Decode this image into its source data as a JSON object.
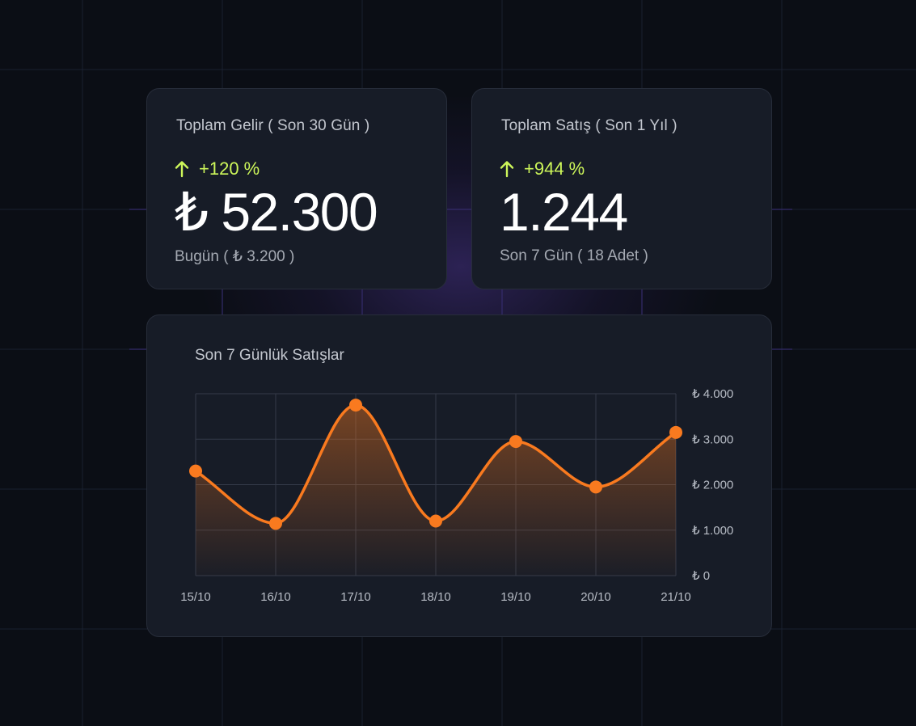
{
  "kpis": {
    "revenue": {
      "title": "Toplam Gelir ( Son 30 Gün )",
      "change": "+120 %",
      "value": "₺ 52.300",
      "sub": "Bugün ( ₺ 3.200 )"
    },
    "sales": {
      "title": "Toplam Satış ( Son 1 Yıl )",
      "change": "+944 %",
      "value": "1.244",
      "sub": "Son 7 Gün ( 18 Adet )"
    }
  },
  "colors": {
    "accent_up": "#cdf65a",
    "line": "#f97a1f",
    "card_bg": "#171c27",
    "page_bg": "#0b0e15"
  },
  "icons": {
    "trend": "arrow-up-icon"
  },
  "chart": {
    "title": "Son 7 Günlük Satışlar"
  },
  "chart_data": {
    "type": "area",
    "title": "Son 7 Günlük Satışlar",
    "xlabel": "",
    "ylabel": "",
    "categories": [
      "15/10",
      "16/10",
      "17/10",
      "18/10",
      "19/10",
      "20/10",
      "21/10"
    ],
    "values": [
      2300,
      1150,
      3750,
      1200,
      2950,
      1950,
      3150
    ],
    "ylim": [
      0,
      4000
    ],
    "y_ticks": [
      0,
      1000,
      2000,
      3000,
      4000
    ],
    "y_tick_labels": [
      "₺ 0",
      "₺ 1.000",
      "₺ 2.000",
      "₺ 3.000",
      "₺ 4.000"
    ],
    "y_axis_position": "right",
    "grid": true,
    "smooth": true,
    "markers": true
  }
}
